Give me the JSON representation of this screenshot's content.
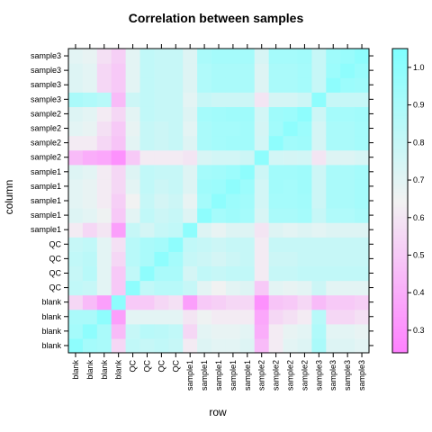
{
  "chart_data": {
    "type": "heatmap",
    "title": "Correlation between samples",
    "xlabel": "row",
    "ylabel": "column",
    "labels": [
      "blank",
      "blank",
      "blank",
      "blank",
      "QC",
      "QC",
      "QC",
      "QC",
      "sample1",
      "sample1",
      "sample1",
      "sample1",
      "sample1",
      "sample2",
      "sample2",
      "sample2",
      "sample2",
      "sample3",
      "sample3",
      "sample3",
      "sample3"
    ],
    "grid": false,
    "legend_position": "right",
    "colorbar": {
      "range": [
        0.24,
        1.05
      ],
      "ticks": [
        "0.3",
        "0.4",
        "0.5",
        "0.6",
        "0.7",
        "0.8",
        "0.9",
        "1.0"
      ],
      "tick_values": [
        0.3,
        0.4,
        0.5,
        0.6,
        0.7,
        0.8,
        0.9,
        1.0
      ],
      "low_color": "#FF80FF",
      "mid_color": "#F2F2F2",
      "high_color": "#80FFFF"
    },
    "values": [
      [
        1.0,
        0.92,
        0.9,
        0.55,
        0.82,
        0.8,
        0.82,
        0.8,
        0.62,
        0.72,
        0.7,
        0.7,
        0.72,
        0.45,
        0.62,
        0.7,
        0.72,
        0.9,
        0.72,
        0.72,
        0.7
      ],
      [
        0.92,
        1.0,
        0.9,
        0.45,
        0.8,
        0.85,
        0.84,
        0.82,
        0.55,
        0.7,
        0.68,
        0.68,
        0.7,
        0.4,
        0.62,
        0.68,
        0.7,
        0.88,
        0.7,
        0.7,
        0.68
      ],
      [
        0.9,
        0.9,
        1.0,
        0.35,
        0.7,
        0.7,
        0.7,
        0.7,
        0.6,
        0.66,
        0.62,
        0.62,
        0.62,
        0.38,
        0.55,
        0.58,
        0.62,
        0.85,
        0.55,
        0.55,
        0.58
      ],
      [
        0.55,
        0.45,
        0.35,
        1.0,
        0.5,
        0.5,
        0.55,
        0.58,
        0.35,
        0.5,
        0.52,
        0.55,
        0.55,
        0.3,
        0.48,
        0.5,
        0.55,
        0.45,
        0.5,
        0.5,
        0.52
      ],
      [
        0.82,
        0.8,
        0.7,
        0.5,
        1.0,
        0.82,
        0.85,
        0.85,
        0.8,
        0.7,
        0.65,
        0.7,
        0.72,
        0.5,
        0.7,
        0.68,
        0.7,
        0.78,
        0.7,
        0.7,
        0.7
      ],
      [
        0.8,
        0.85,
        0.7,
        0.5,
        0.82,
        1.0,
        0.9,
        0.9,
        0.75,
        0.82,
        0.8,
        0.82,
        0.82,
        0.62,
        0.8,
        0.8,
        0.82,
        0.82,
        0.82,
        0.82,
        0.82
      ],
      [
        0.82,
        0.84,
        0.7,
        0.55,
        0.85,
        0.9,
        1.0,
        0.92,
        0.8,
        0.78,
        0.75,
        0.78,
        0.8,
        0.62,
        0.78,
        0.78,
        0.8,
        0.8,
        0.8,
        0.8,
        0.8
      ],
      [
        0.8,
        0.82,
        0.7,
        0.58,
        0.85,
        0.9,
        0.92,
        1.0,
        0.82,
        0.8,
        0.78,
        0.8,
        0.8,
        0.62,
        0.8,
        0.8,
        0.8,
        0.8,
        0.8,
        0.8,
        0.8
      ],
      [
        0.62,
        0.55,
        0.6,
        0.35,
        0.8,
        0.75,
        0.8,
        0.82,
        1.0,
        0.72,
        0.68,
        0.72,
        0.72,
        0.6,
        0.72,
        0.7,
        0.72,
        0.7,
        0.72,
        0.72,
        0.72
      ],
      [
        0.72,
        0.7,
        0.66,
        0.5,
        0.7,
        0.82,
        0.78,
        0.8,
        0.72,
        1.0,
        0.92,
        0.94,
        0.92,
        0.74,
        0.9,
        0.9,
        0.92,
        0.8,
        0.88,
        0.88,
        0.9
      ],
      [
        0.7,
        0.68,
        0.62,
        0.52,
        0.65,
        0.8,
        0.75,
        0.78,
        0.68,
        0.92,
        1.0,
        0.95,
        0.93,
        0.76,
        0.92,
        0.92,
        0.93,
        0.78,
        0.9,
        0.9,
        0.92
      ],
      [
        0.7,
        0.68,
        0.62,
        0.55,
        0.7,
        0.82,
        0.78,
        0.8,
        0.72,
        0.94,
        0.95,
        1.0,
        0.95,
        0.76,
        0.93,
        0.92,
        0.94,
        0.78,
        0.9,
        0.9,
        0.92
      ],
      [
        0.72,
        0.7,
        0.62,
        0.55,
        0.72,
        0.82,
        0.8,
        0.8,
        0.72,
        0.92,
        0.93,
        0.95,
        1.0,
        0.78,
        0.93,
        0.93,
        0.94,
        0.78,
        0.9,
        0.9,
        0.92
      ],
      [
        0.45,
        0.4,
        0.38,
        0.3,
        0.5,
        0.62,
        0.62,
        0.62,
        0.6,
        0.74,
        0.76,
        0.76,
        0.78,
        1.0,
        0.76,
        0.75,
        0.76,
        0.6,
        0.72,
        0.72,
        0.74
      ],
      [
        0.62,
        0.62,
        0.55,
        0.48,
        0.7,
        0.8,
        0.78,
        0.8,
        0.72,
        0.9,
        0.92,
        0.93,
        0.93,
        0.76,
        1.0,
        0.93,
        0.94,
        0.75,
        0.9,
        0.9,
        0.92
      ],
      [
        0.7,
        0.68,
        0.58,
        0.5,
        0.68,
        0.8,
        0.78,
        0.8,
        0.7,
        0.9,
        0.92,
        0.92,
        0.93,
        0.75,
        0.93,
        1.0,
        0.95,
        0.75,
        0.9,
        0.9,
        0.92
      ],
      [
        0.72,
        0.7,
        0.62,
        0.55,
        0.7,
        0.82,
        0.8,
        0.8,
        0.72,
        0.92,
        0.93,
        0.94,
        0.94,
        0.76,
        0.94,
        0.95,
        1.0,
        0.78,
        0.92,
        0.92,
        0.93
      ],
      [
        0.9,
        0.88,
        0.85,
        0.45,
        0.78,
        0.82,
        0.8,
        0.8,
        0.7,
        0.8,
        0.78,
        0.78,
        0.78,
        0.6,
        0.75,
        0.75,
        0.78,
        1.0,
        0.8,
        0.8,
        0.8
      ],
      [
        0.72,
        0.7,
        0.55,
        0.5,
        0.7,
        0.82,
        0.8,
        0.8,
        0.72,
        0.88,
        0.9,
        0.9,
        0.9,
        0.72,
        0.9,
        0.9,
        0.92,
        0.8,
        1.0,
        0.95,
        0.94
      ],
      [
        0.72,
        0.7,
        0.55,
        0.5,
        0.7,
        0.82,
        0.8,
        0.8,
        0.72,
        0.88,
        0.9,
        0.9,
        0.9,
        0.72,
        0.9,
        0.9,
        0.92,
        0.8,
        0.95,
        1.0,
        0.96
      ],
      [
        0.7,
        0.68,
        0.58,
        0.52,
        0.7,
        0.82,
        0.8,
        0.8,
        0.72,
        0.9,
        0.92,
        0.92,
        0.92,
        0.74,
        0.92,
        0.92,
        0.93,
        0.8,
        0.94,
        0.96,
        1.0
      ]
    ]
  }
}
